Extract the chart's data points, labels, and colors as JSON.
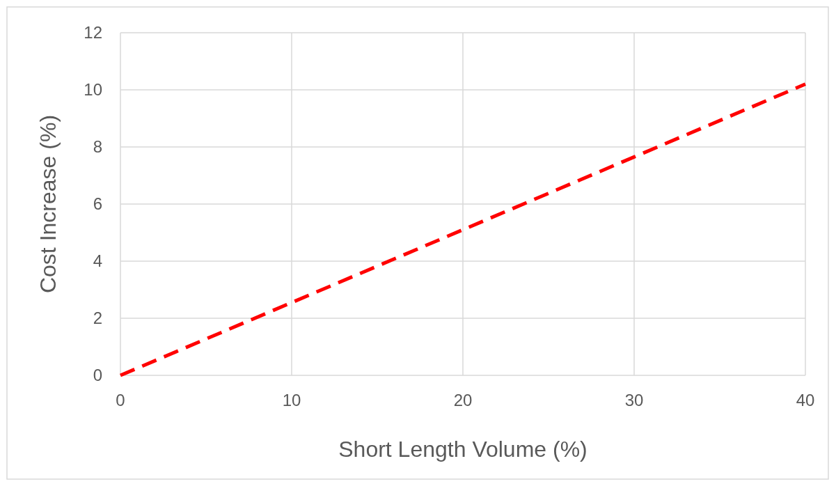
{
  "chart_data": {
    "type": "line",
    "xlabel": "Short Length Volume (%)",
    "ylabel": "Cost Increase (%)",
    "x": [
      0,
      10,
      20,
      30,
      40
    ],
    "series": [
      {
        "color": "#ff0000",
        "values": [
          0,
          2.55,
          5.1,
          7.65,
          10.2
        ]
      }
    ],
    "xlim": [
      0,
      40
    ],
    "xticks": [
      0,
      10,
      20,
      30,
      40
    ],
    "ylim": [
      0,
      12
    ],
    "yticks": [
      0,
      2,
      4,
      6,
      8,
      10,
      12
    ],
    "grid": true,
    "line_style": "dashed",
    "marker": "none"
  }
}
